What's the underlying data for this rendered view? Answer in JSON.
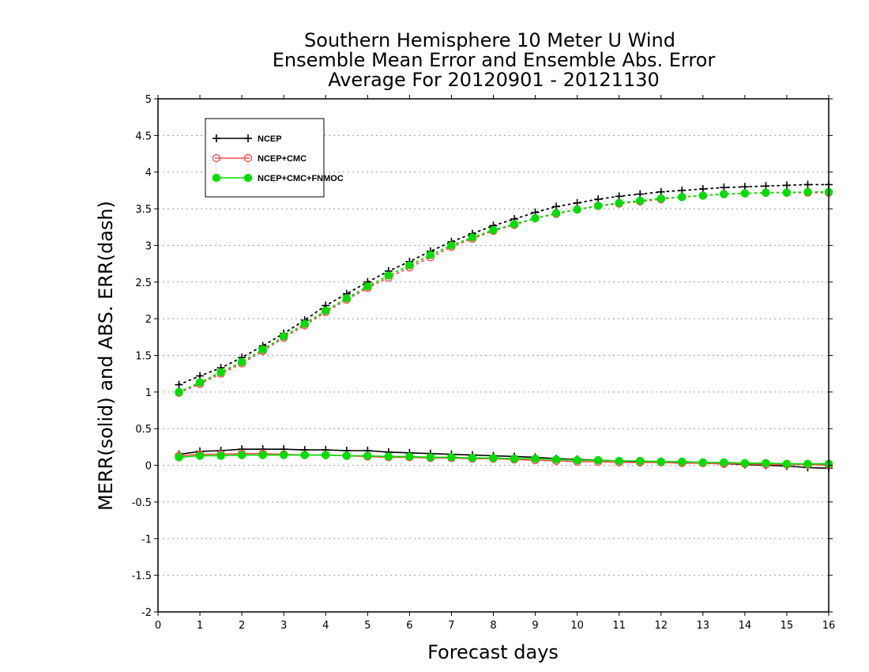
{
  "chart_data": {
    "type": "line",
    "title": [
      "Southern Hemisphere 10 Meter U Wind",
      "Ensemble Mean Error and Ensemble Abs. Error",
      "Average For 20120901 - 20121130"
    ],
    "xlabel": "Forecast days",
    "ylabel": "MERR(solid) and ABS. ERR(dash)",
    "xlim": [
      0,
      16
    ],
    "ylim": [
      -2,
      5
    ],
    "xticks": [
      0,
      1,
      2,
      3,
      4,
      5,
      6,
      7,
      8,
      9,
      10,
      11,
      12,
      13,
      14,
      15,
      16
    ],
    "yticks": [
      -2,
      -1.5,
      -1,
      -0.5,
      0,
      0.5,
      1,
      1.5,
      2,
      2.5,
      3,
      3.5,
      4,
      4.5,
      5
    ],
    "ytick_labels": [
      "-2",
      "-1.5",
      "-1",
      "-0.5",
      "0",
      "0.5",
      "1",
      "1.5",
      "2",
      "2.5",
      "3",
      "3.5",
      "4",
      "4.5",
      "5"
    ],
    "xtick_labels": [
      "0",
      "1",
      "2",
      "3",
      "4",
      "5",
      "6",
      "7",
      "8",
      "9",
      "10",
      "11",
      "12",
      "13",
      "14",
      "15",
      "16"
    ],
    "grid": "horizontal-dotted",
    "legend_position": "top-left",
    "x": [
      0.5,
      1,
      1.5,
      2,
      2.5,
      3,
      3.5,
      4,
      4.5,
      5,
      5.5,
      6,
      6.5,
      7,
      7.5,
      8,
      8.5,
      9,
      9.5,
      10,
      10.5,
      11,
      11.5,
      12,
      12.5,
      13,
      13.5,
      14,
      14.5,
      15,
      15.5,
      16
    ],
    "series": [
      {
        "name": "NCEP",
        "color": "#000000",
        "marker": "plus",
        "merr": [
          0.15,
          0.19,
          0.2,
          0.22,
          0.22,
          0.22,
          0.21,
          0.21,
          0.2,
          0.2,
          0.18,
          0.17,
          0.16,
          0.15,
          0.14,
          0.13,
          0.12,
          0.11,
          0.09,
          0.08,
          0.07,
          0.06,
          0.05,
          0.05,
          0.04,
          0.03,
          0.02,
          0.01,
          0.0,
          -0.01,
          -0.03,
          -0.04
        ],
        "abs_err": [
          1.1,
          1.22,
          1.33,
          1.47,
          1.63,
          1.8,
          1.98,
          2.18,
          2.34,
          2.5,
          2.65,
          2.78,
          2.92,
          3.05,
          3.16,
          3.27,
          3.36,
          3.45,
          3.53,
          3.58,
          3.63,
          3.67,
          3.7,
          3.73,
          3.75,
          3.77,
          3.79,
          3.8,
          3.81,
          3.82,
          3.83,
          3.83
        ]
      },
      {
        "name": "NCEP+CMC",
        "color": "#ff5050",
        "marker": "open-circle",
        "merr": [
          0.13,
          0.15,
          0.15,
          0.16,
          0.16,
          0.15,
          0.14,
          0.14,
          0.13,
          0.12,
          0.11,
          0.11,
          0.1,
          0.1,
          0.09,
          0.09,
          0.08,
          0.07,
          0.06,
          0.05,
          0.05,
          0.04,
          0.04,
          0.04,
          0.03,
          0.03,
          0.02,
          0.02,
          0.01,
          0.01,
          0.01,
          0.0
        ],
        "abs_err": [
          0.99,
          1.11,
          1.25,
          1.39,
          1.56,
          1.74,
          1.91,
          2.09,
          2.26,
          2.42,
          2.56,
          2.7,
          2.84,
          2.98,
          3.09,
          3.2,
          3.28,
          3.37,
          3.43,
          3.49,
          3.54,
          3.57,
          3.6,
          3.63,
          3.66,
          3.68,
          3.7,
          3.71,
          3.72,
          3.72,
          3.72,
          3.72
        ]
      },
      {
        "name": "NCEP+CMC+FNMOC",
        "color": "#00dd00",
        "marker": "filled-circle",
        "merr": [
          0.11,
          0.13,
          0.13,
          0.14,
          0.14,
          0.14,
          0.14,
          0.14,
          0.13,
          0.13,
          0.12,
          0.12,
          0.11,
          0.11,
          0.1,
          0.1,
          0.09,
          0.09,
          0.08,
          0.07,
          0.07,
          0.06,
          0.06,
          0.05,
          0.05,
          0.04,
          0.04,
          0.03,
          0.03,
          0.02,
          0.02,
          0.02
        ],
        "abs_err": [
          1.0,
          1.13,
          1.27,
          1.41,
          1.58,
          1.76,
          1.93,
          2.11,
          2.28,
          2.44,
          2.59,
          2.73,
          2.87,
          3.0,
          3.11,
          3.21,
          3.29,
          3.37,
          3.44,
          3.49,
          3.54,
          3.58,
          3.61,
          3.64,
          3.66,
          3.68,
          3.7,
          3.71,
          3.72,
          3.72,
          3.73,
          3.73
        ]
      }
    ]
  }
}
